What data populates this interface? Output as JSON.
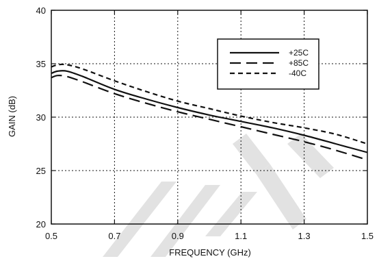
{
  "chart_data": {
    "type": "line",
    "title": "",
    "xlabel": "FREQUENCY (GHz)",
    "ylabel": "GAIN (dB)",
    "xlim": [
      0.5,
      1.5
    ],
    "ylim": [
      20,
      40
    ],
    "x_ticks": [
      "0.5",
      "0.7",
      "0.9",
      "1.1",
      "1.3",
      "1.5"
    ],
    "y_ticks": [
      "20",
      "25",
      "30",
      "35",
      "40"
    ],
    "grid": true,
    "grid_style": "dotted",
    "legend_position": "top-right",
    "series": [
      {
        "name": "+25C",
        "style": "solid",
        "color": "#111111",
        "x": [
          0.5,
          0.52,
          0.55,
          0.6,
          0.7,
          0.8,
          0.9,
          1.0,
          1.1,
          1.2,
          1.3,
          1.4,
          1.5
        ],
        "y": [
          34.1,
          34.3,
          34.3,
          33.8,
          32.6,
          31.7,
          30.9,
          30.2,
          29.6,
          29.0,
          28.3,
          27.5,
          26.7
        ]
      },
      {
        "name": "+85C",
        "style": "long-dash",
        "color": "#111111",
        "x": [
          0.5,
          0.52,
          0.55,
          0.6,
          0.7,
          0.8,
          0.9,
          1.0,
          1.1,
          1.2,
          1.3,
          1.4,
          1.5
        ],
        "y": [
          33.7,
          33.9,
          33.8,
          33.3,
          32.2,
          31.3,
          30.5,
          29.8,
          29.1,
          28.4,
          27.7,
          26.9,
          26.0
        ]
      },
      {
        "name": "-40C",
        "style": "short-dash",
        "color": "#111111",
        "x": [
          0.5,
          0.52,
          0.55,
          0.6,
          0.7,
          0.8,
          0.9,
          1.0,
          1.1,
          1.2,
          1.3,
          1.4,
          1.5
        ],
        "y": [
          34.7,
          34.9,
          34.9,
          34.5,
          33.4,
          32.4,
          31.5,
          30.8,
          30.1,
          29.5,
          29.0,
          28.4,
          27.5
        ]
      }
    ]
  },
  "watermark": {
    "text": "TE",
    "color": "#e2e2e2"
  }
}
